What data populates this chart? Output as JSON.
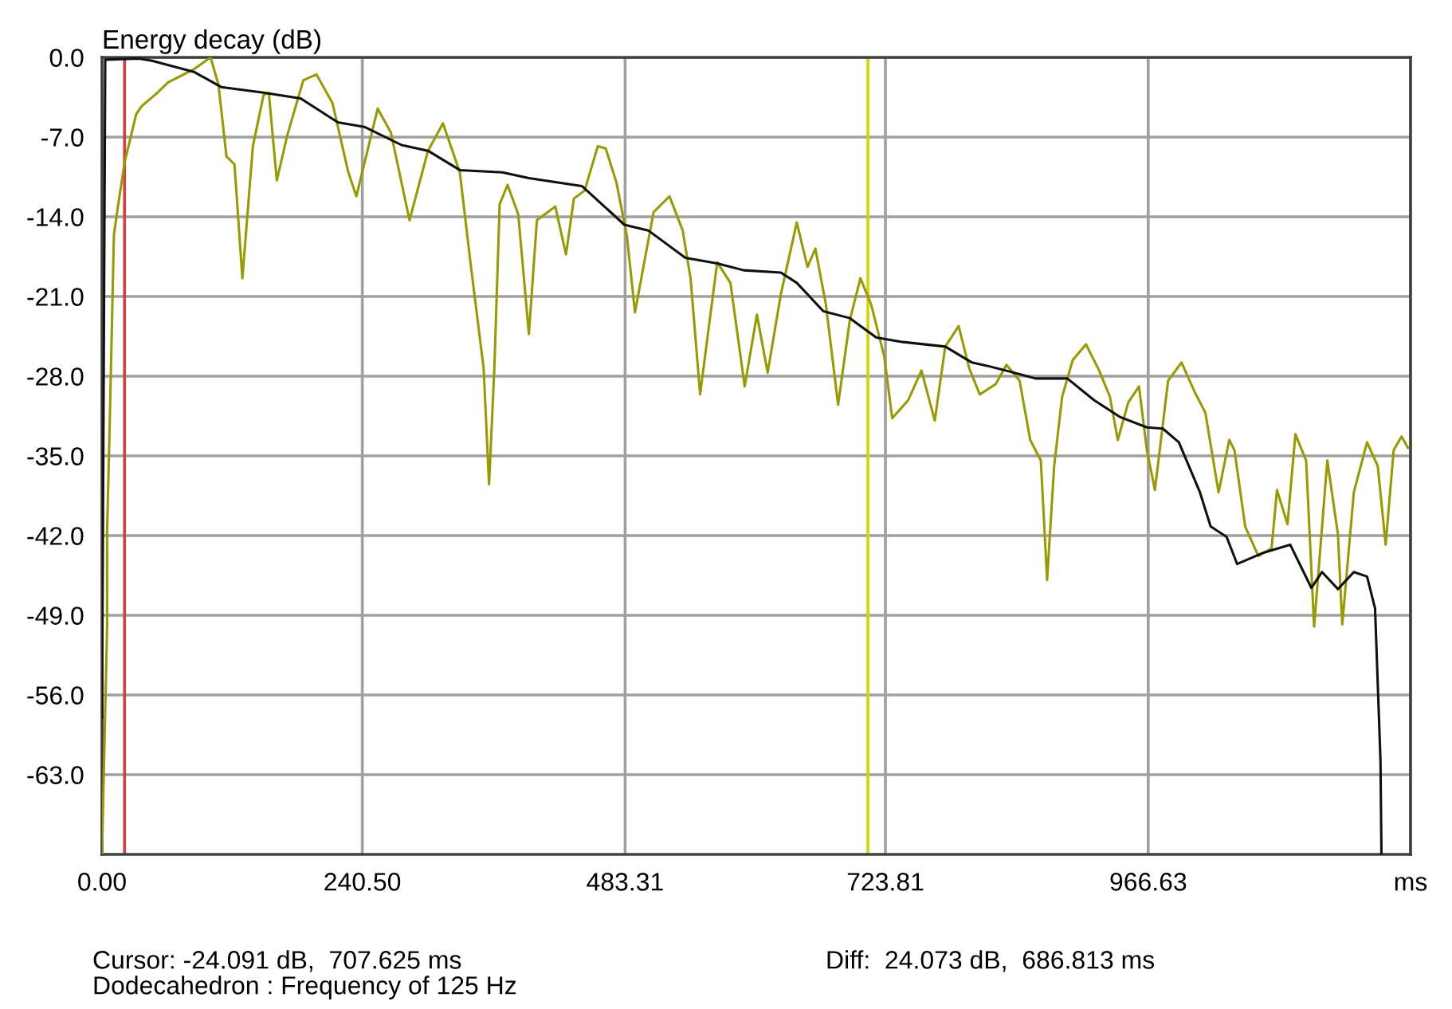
{
  "chart_data": {
    "type": "line",
    "title": "Energy decay (dB)",
    "xlim": [
      0,
      1209
    ],
    "ylim": [
      -70,
      0
    ],
    "xticks": [
      {
        "value": 0,
        "label": "0.00"
      },
      {
        "value": 240.5,
        "label": "240.50"
      },
      {
        "value": 483.31,
        "label": "483.31"
      },
      {
        "value": 723.81,
        "label": "723.81"
      },
      {
        "value": 966.63,
        "label": "966.63"
      },
      {
        "value": 1209,
        "label": "ms"
      }
    ],
    "yticks": [
      {
        "value": 0,
        "label": "0.0"
      },
      {
        "value": -7,
        "label": "-7.0"
      },
      {
        "value": -14,
        "label": "-14.0"
      },
      {
        "value": -21,
        "label": "-21.0"
      },
      {
        "value": -28,
        "label": "-28.0"
      },
      {
        "value": -35,
        "label": "-35.0"
      },
      {
        "value": -42,
        "label": "-42.0"
      },
      {
        "value": -49,
        "label": "-49.0"
      },
      {
        "value": -56,
        "label": "-56.0"
      },
      {
        "value": -63,
        "label": "-63.0"
      }
    ],
    "grid": true,
    "ref_lines": [
      {
        "axis": "x",
        "value": 20.812,
        "color": "#d04040"
      },
      {
        "axis": "x",
        "value": 707.625,
        "color": "#d4d400"
      }
    ],
    "annotations": [
      "Cursor: -24.091 dB,  707.625 ms",
      "Diff:  24.073 dB,  686.813 ms",
      "Dodecahedron : Frequency of 125 Hz"
    ],
    "series": [
      {
        "color": "#999900",
        "x": [
          0,
          4.7,
          4.7,
          7.1,
          11.0,
          14.4,
          20.9,
          31.6,
          36.5,
          51.2,
          61.0,
          85.6,
          100.3,
          107.6,
          115.0,
          122.4,
          129.7,
          139.4,
          149.3,
          154.1,
          161.5,
          171.3,
          186.0,
          198.2,
          212.9,
          227.6,
          235.0,
          254.7,
          266.9,
          284.1,
          301.2,
          315.0,
          330.6,
          340.4,
          352.6,
          357.6,
          362.5,
          367.4,
          374.7,
          384.6,
          394.4,
          401.8,
          418.8,
          428.7,
          436.0,
          445.9,
          458.1,
          465.4,
          475.3,
          485.0,
          492.4,
          509.6,
          524.3,
          536.5,
          543.8,
          552.6,
          568.4,
          580.6,
          593.8,
          605.1,
          615.0,
          627.2,
          641.9,
          651.8,
          659.1,
          668.8,
          680.1,
          690.9,
          700.7,
          710.6,
          722.8,
          730.1,
          744.9,
          757.1,
          769.4,
          779.1,
          791.5,
          801.2,
          811.0,
          825.7,
          835.6,
          847.8,
          857.6,
          867.4,
          873.2,
          879.7,
          887.1,
          896.8,
          909.1,
          921.3,
          931.2,
          938.5,
          948.2,
          958.1,
          965.4,
          972.8,
          985.0,
          997.4,
          1009.6,
          1019.4,
          1031.6,
          1041.5,
          1046.3,
          1056.2,
          1068.4,
          1080.6,
          1085.6,
          1095.3,
          1102.6,
          1112.5,
          1119.9,
          1132.1,
          1141.9,
          1145.9,
          1156.6,
          1168.8,
          1178.7,
          1186.0,
          1193.4,
          1200.7,
          1206.6
        ],
        "values": [
          -69.9,
          -50.0,
          -41.7,
          -32.3,
          -15.6,
          -13.3,
          -9.2,
          -5.0,
          -4.3,
          -3.1,
          -2.2,
          -1.0,
          0.0,
          -2.4,
          -8.7,
          -9.4,
          -19.4,
          -7.8,
          -3.3,
          -3.1,
          -10.8,
          -6.8,
          -2.0,
          -1.5,
          -4.0,
          -10.1,
          -12.2,
          -4.5,
          -6.6,
          -14.3,
          -8.2,
          -5.8,
          -10.1,
          -18.0,
          -27.3,
          -37.5,
          -27.3,
          -12.9,
          -11.2,
          -13.8,
          -24.3,
          -14.3,
          -13.1,
          -17.3,
          -12.4,
          -11.7,
          -7.8,
          -8.0,
          -11.0,
          -15.7,
          -22.4,
          -13.6,
          -12.2,
          -15.2,
          -19.4,
          -29.6,
          -18.0,
          -19.8,
          -28.9,
          -22.6,
          -27.7,
          -20.8,
          -14.5,
          -18.4,
          -16.8,
          -21.7,
          -30.5,
          -23.1,
          -19.4,
          -21.7,
          -26.3,
          -31.7,
          -30.1,
          -27.5,
          -31.9,
          -25.4,
          -23.6,
          -27.3,
          -29.6,
          -28.7,
          -27.0,
          -28.4,
          -33.6,
          -35.4,
          -45.9,
          -35.9,
          -29.8,
          -26.6,
          -25.2,
          -27.5,
          -29.8,
          -33.6,
          -30.3,
          -28.9,
          -34.5,
          -38.0,
          -28.4,
          -26.8,
          -29.4,
          -31.2,
          -38.2,
          -33.6,
          -34.5,
          -41.2,
          -43.8,
          -43.1,
          -38.0,
          -41.0,
          -33.1,
          -35.4,
          -50.0,
          -35.4,
          -41.9,
          -49.8,
          -38.2,
          -33.8,
          -35.9,
          -42.8,
          -34.5,
          -33.3,
          -34.3
        ]
      },
      {
        "color": "#101010",
        "x": [
          0,
          3,
          34.1,
          46.3,
          85.6,
          110,
          149.3,
          183.5,
          217.9,
          242.4,
          276.8,
          301.2,
          330.6,
          369.9,
          394.4,
          428.7,
          443.4,
          482.6,
          504.7,
          539,
          568.4,
          592.9,
          627.2,
          641.9,
          666.5,
          690.9,
          715.4,
          740,
          779.1,
          803.7,
          818.4,
          842.9,
          862.5,
          891.9,
          916.5,
          940.9,
          965.4,
          980.1,
          994.9,
          1014.4,
          1024.3,
          1039.0,
          1048.8,
          1073.2,
          1097.8,
          1117.4,
          1127.2,
          1141.9,
          1156.6,
          1168.8,
          1176.2,
          1181.2,
          1182.1
        ],
        "values": [
          -58.0,
          -0.2,
          -0.1,
          -0.3,
          -1.3,
          -2.6,
          -3.1,
          -3.6,
          -5.7,
          -6.1,
          -7.7,
          -8.2,
          -9.9,
          -10.1,
          -10.6,
          -11.1,
          -11.3,
          -14.7,
          -15.2,
          -17.6,
          -18.1,
          -18.7,
          -18.9,
          -19.8,
          -22.3,
          -22.9,
          -24.6,
          -25.0,
          -25.4,
          -26.8,
          -27.1,
          -27.7,
          -28.2,
          -28.2,
          -30.1,
          -31.6,
          -32.5,
          -32.6,
          -33.8,
          -38.2,
          -41.2,
          -42.1,
          -44.5,
          -43.5,
          -42.8,
          -46.6,
          -45.2,
          -46.7,
          -45.2,
          -45.6,
          -48.4,
          -61.7,
          -69.9
        ]
      }
    ]
  }
}
